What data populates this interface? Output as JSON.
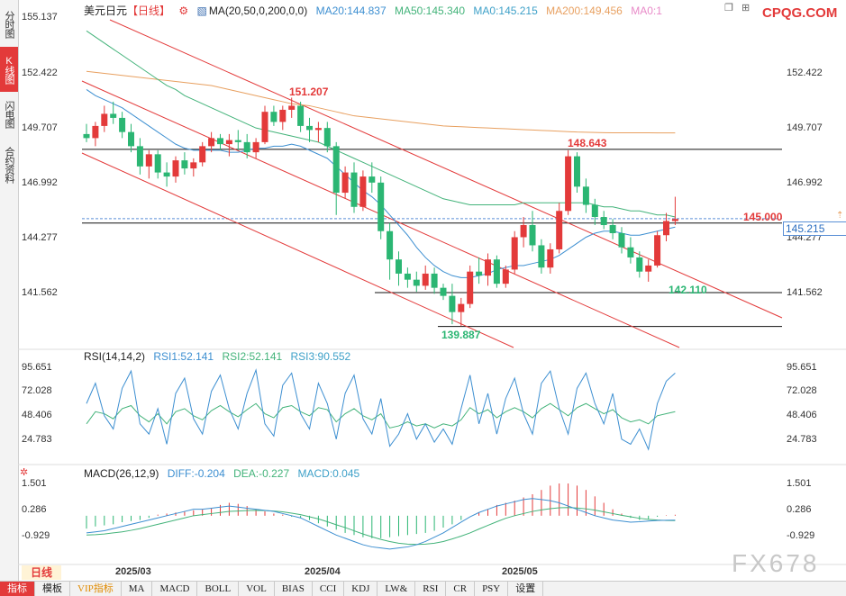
{
  "sidebar": {
    "tabs": [
      {
        "label": "分时图",
        "active": false
      },
      {
        "label": "K线图",
        "active": true
      },
      {
        "label": "闪电图",
        "active": false
      },
      {
        "label": "合约资料",
        "active": false
      }
    ]
  },
  "header": {
    "symbol": "美元日元",
    "period": "【日线】",
    "ma_params": "MA(20,50,0,200,0,0)",
    "ma20": "MA20:144.837",
    "ma50": "MA50:145.340",
    "ma0": "MA0:145.215",
    "ma200": "MA200:149.456",
    "ma0b": "MA0:1",
    "brand": "CPQG.COM"
  },
  "price_axis": [
    "155.137",
    "152.422",
    "149.707",
    "146.992",
    "144.277",
    "141.562"
  ],
  "current_price": "145.215",
  "annotations": {
    "high1": "151.207",
    "high2": "148.643",
    "low1": "139.887",
    "low2": "142.110",
    "level": "145.000"
  },
  "rsi": {
    "title": "RSI(14,14,2)",
    "rsi1": "RSI1:52.141",
    "rsi2": "RSI2:52.141",
    "rsi3": "RSI3:90.552",
    "axis": [
      "95.651",
      "72.028",
      "48.406",
      "24.783"
    ]
  },
  "macd": {
    "title": "MACD(26,12,9)",
    "diff": "DIFF:-0.204",
    "dea": "DEA:-0.227",
    "macd": "MACD:0.045",
    "axis": [
      "1.501",
      "0.286",
      "-0.929"
    ]
  },
  "dates": [
    "2025/03",
    "2025/04",
    "2025/05"
  ],
  "period_badge": "日线",
  "watermark": "FX678",
  "toolbar": [
    "指标",
    "模板",
    "VIP指标",
    "MA",
    "MACD",
    "BOLL",
    "VOL",
    "BIAS",
    "CCI",
    "KDJ",
    "LW&",
    "RSI",
    "CR",
    "PSY",
    "设置"
  ],
  "colors": {
    "up": "#e33a3a",
    "down": "#2bb673",
    "ma20": "#3d8fd1",
    "ma50": "#43b37a",
    "ma200": "#e8a060"
  },
  "chart_data": {
    "type": "candlestick",
    "ylim": [
      138.5,
      156.0
    ],
    "candles": [
      [
        149.4,
        149.9,
        149.0,
        149.2
      ],
      [
        149.2,
        150.0,
        148.8,
        149.8
      ],
      [
        149.8,
        150.8,
        149.5,
        150.4
      ],
      [
        150.4,
        151.0,
        149.9,
        150.2
      ],
      [
        150.2,
        150.5,
        149.2,
        149.5
      ],
      [
        149.5,
        149.9,
        148.5,
        148.8
      ],
      [
        148.8,
        149.2,
        147.4,
        147.8
      ],
      [
        147.8,
        148.6,
        147.2,
        148.4
      ],
      [
        148.4,
        148.6,
        147.2,
        147.5
      ],
      [
        147.5,
        148.0,
        146.8,
        147.3
      ],
      [
        147.3,
        148.3,
        147.0,
        148.1
      ],
      [
        148.1,
        148.5,
        147.4,
        147.7
      ],
      [
        147.7,
        148.2,
        147.3,
        148.0
      ],
      [
        148.0,
        149.0,
        147.8,
        148.8
      ],
      [
        148.8,
        149.5,
        148.5,
        149.2
      ],
      [
        149.2,
        149.4,
        148.6,
        148.9
      ],
      [
        148.9,
        149.4,
        148.3,
        149.1
      ],
      [
        149.1,
        149.6,
        148.6,
        149.0
      ],
      [
        149.0,
        149.4,
        148.2,
        148.5
      ],
      [
        148.5,
        149.2,
        148.2,
        149.0
      ],
      [
        149.0,
        150.8,
        148.9,
        150.5
      ],
      [
        150.5,
        150.8,
        149.8,
        150.0
      ],
      [
        150.0,
        150.8,
        149.6,
        150.6
      ],
      [
        150.6,
        151.2,
        150.2,
        150.8
      ],
      [
        150.8,
        151.0,
        149.5,
        149.8
      ],
      [
        149.8,
        150.2,
        149.0,
        149.6
      ],
      [
        149.6,
        150.0,
        149.0,
        149.7
      ],
      [
        149.7,
        150.0,
        148.5,
        148.8
      ],
      [
        148.8,
        149.0,
        145.4,
        146.5
      ],
      [
        146.5,
        147.8,
        146.2,
        147.5
      ],
      [
        147.5,
        148.0,
        145.5,
        145.8
      ],
      [
        145.8,
        147.6,
        145.6,
        147.3
      ],
      [
        147.3,
        148.0,
        146.5,
        147.0
      ],
      [
        147.0,
        147.3,
        144.2,
        144.6
      ],
      [
        144.6,
        145.0,
        142.2,
        143.2
      ],
      [
        143.2,
        143.6,
        141.9,
        142.5
      ],
      [
        142.5,
        142.8,
        141.8,
        142.2
      ],
      [
        142.2,
        142.6,
        141.6,
        141.9
      ],
      [
        141.9,
        142.9,
        141.7,
        142.5
      ],
      [
        142.5,
        142.8,
        141.5,
        141.8
      ],
      [
        141.8,
        142.0,
        141.2,
        141.4
      ],
      [
        141.4,
        142.0,
        140.0,
        140.6
      ],
      [
        140.6,
        141.3,
        139.9,
        141.0
      ],
      [
        141.0,
        142.9,
        140.8,
        142.6
      ],
      [
        142.6,
        143.3,
        142.0,
        142.4
      ],
      [
        142.4,
        143.5,
        141.9,
        143.2
      ],
      [
        143.2,
        143.4,
        141.8,
        142.0
      ],
      [
        142.0,
        142.9,
        141.8,
        142.7
      ],
      [
        142.7,
        144.6,
        142.5,
        144.3
      ],
      [
        144.3,
        145.3,
        143.8,
        144.9
      ],
      [
        144.9,
        145.6,
        143.6,
        143.9
      ],
      [
        143.9,
        144.2,
        142.5,
        142.8
      ],
      [
        142.8,
        144.0,
        142.5,
        143.7
      ],
      [
        143.7,
        146.0,
        143.5,
        145.6
      ],
      [
        145.6,
        148.6,
        145.4,
        148.3
      ],
      [
        148.3,
        148.5,
        146.5,
        146.8
      ],
      [
        146.8,
        147.2,
        145.5,
        145.9
      ],
      [
        145.9,
        146.2,
        144.9,
        145.3
      ],
      [
        145.3,
        145.6,
        144.7,
        144.9
      ],
      [
        144.9,
        145.2,
        144.2,
        144.5
      ],
      [
        144.5,
        144.8,
        143.5,
        143.8
      ],
      [
        143.8,
        144.3,
        143.0,
        143.3
      ],
      [
        143.3,
        143.6,
        142.3,
        142.6
      ],
      [
        142.6,
        143.2,
        142.1,
        142.9
      ],
      [
        142.9,
        144.6,
        142.8,
        144.4
      ],
      [
        144.4,
        145.5,
        144.1,
        145.1
      ],
      [
        145.1,
        146.3,
        144.9,
        145.2
      ]
    ],
    "ma20": [
      151.6,
      151.3,
      151.1,
      150.9,
      150.7,
      150.4,
      150.1,
      149.8,
      149.5,
      149.2,
      148.9,
      148.7,
      148.6,
      148.6,
      148.6,
      148.6,
      148.5,
      148.5,
      148.6,
      148.7,
      148.7,
      148.8,
      148.8,
      148.9,
      148.8,
      148.6,
      148.4,
      148.2,
      147.8,
      147.4,
      147.0,
      146.6,
      146.3,
      145.9,
      145.4,
      144.9,
      144.4,
      143.8,
      143.3,
      142.9,
      142.6,
      142.4,
      142.3,
      142.3,
      142.4,
      142.5,
      142.7,
      142.8,
      142.9,
      142.9,
      143.0,
      143.1,
      143.2,
      143.4,
      143.7,
      144.0,
      144.3,
      144.5,
      144.6,
      144.6,
      144.5,
      144.4,
      144.4,
      144.5,
      144.6,
      144.7,
      144.8
    ],
    "ma50": [
      154.5,
      154.2,
      153.9,
      153.6,
      153.3,
      153.0,
      152.7,
      152.4,
      152.1,
      151.8,
      151.6,
      151.3,
      151.1,
      150.9,
      150.7,
      150.5,
      150.3,
      150.1,
      149.9,
      149.7,
      149.6,
      149.5,
      149.4,
      149.3,
      149.2,
      149.1,
      149.0,
      148.8,
      148.6,
      148.4,
      148.2,
      148.0,
      147.8,
      147.6,
      147.4,
      147.2,
      147.0,
      146.8,
      146.6,
      146.4,
      146.2,
      146.1,
      146.0,
      145.9,
      145.9,
      145.9,
      145.9,
      145.9,
      145.9,
      146.0,
      146.0,
      146.0,
      146.0,
      146.0,
      146.0,
      146.0,
      146.0,
      145.9,
      145.8,
      145.8,
      145.7,
      145.6,
      145.6,
      145.5,
      145.4,
      145.4,
      145.3
    ],
    "ma200": [
      152.5,
      152.45,
      152.4,
      152.35,
      152.3,
      152.25,
      152.2,
      152.15,
      152.1,
      152.05,
      152.0,
      151.95,
      151.9,
      151.85,
      151.8,
      151.7,
      151.6,
      151.5,
      151.4,
      151.3,
      151.2,
      151.1,
      151.0,
      150.9,
      150.85,
      150.8,
      150.7,
      150.6,
      150.5,
      150.4,
      150.3,
      150.25,
      150.2,
      150.15,
      150.1,
      150.05,
      150.0,
      149.95,
      149.9,
      149.85,
      149.8,
      149.78,
      149.76,
      149.74,
      149.72,
      149.7,
      149.68,
      149.66,
      149.64,
      149.62,
      149.6,
      149.58,
      149.56,
      149.54,
      149.52,
      149.5,
      149.49,
      149.48,
      149.47,
      149.46,
      149.46,
      149.46,
      149.46,
      149.46,
      149.456,
      149.456,
      149.456
    ],
    "rsi_line1": [
      60,
      80,
      48,
      35,
      75,
      92,
      40,
      30,
      55,
      20,
      70,
      85,
      45,
      30,
      72,
      88,
      55,
      35,
      70,
      93,
      40,
      28,
      78,
      90,
      50,
      35,
      80,
      60,
      25,
      70,
      88,
      45,
      30,
      65,
      18,
      30,
      50,
      25,
      40,
      22,
      35,
      20,
      55,
      88,
      40,
      70,
      30,
      65,
      85,
      50,
      30,
      80,
      92,
      55,
      30,
      75,
      90,
      60,
      40,
      70,
      25,
      20,
      35,
      15,
      60,
      82,
      90
    ],
    "rsi_line2": [
      40,
      52,
      50,
      45,
      55,
      58,
      48,
      42,
      50,
      40,
      52,
      55,
      48,
      44,
      53,
      58,
      52,
      47,
      54,
      60,
      50,
      46,
      56,
      58,
      52,
      48,
      56,
      54,
      42,
      50,
      55,
      48,
      44,
      50,
      36,
      38,
      42,
      38,
      40,
      36,
      40,
      38,
      44,
      56,
      50,
      54,
      46,
      52,
      56,
      52,
      46,
      55,
      60,
      54,
      48,
      56,
      60,
      55,
      50,
      54,
      46,
      42,
      44,
      40,
      48,
      50,
      52
    ],
    "macd_hist": [
      -0.6,
      -0.5,
      -0.45,
      -0.4,
      -0.3,
      -0.25,
      -0.2,
      -0.1,
      0.05,
      0.1,
      0.15,
      0.2,
      0.25,
      0.3,
      0.35,
      0.5,
      0.6,
      0.55,
      0.45,
      0.3,
      0.2,
      0.1,
      0.05,
      -0.05,
      -0.1,
      -0.2,
      -0.35,
      -0.5,
      -0.65,
      -0.8,
      -0.9,
      -1.0,
      -1.05,
      -1.05,
      -1.0,
      -0.95,
      -0.9,
      -0.85,
      -0.8,
      -0.7,
      -0.55,
      -0.4,
      -0.2,
      0.0,
      0.15,
      0.3,
      0.5,
      0.6,
      0.7,
      0.85,
      1.0,
      1.2,
      1.4,
      1.5,
      1.5,
      1.4,
      1.2,
      0.9,
      0.6,
      0.3,
      0.1,
      -0.1,
      -0.2,
      -0.15,
      -0.05,
      0.02,
      0.045
    ],
    "macd_diff": [
      -0.8,
      -0.75,
      -0.7,
      -0.6,
      -0.5,
      -0.4,
      -0.3,
      -0.2,
      -0.1,
      0.0,
      0.1,
      0.2,
      0.3,
      0.3,
      0.35,
      0.4,
      0.45,
      0.4,
      0.35,
      0.3,
      0.25,
      0.2,
      0.1,
      0.0,
      -0.1,
      -0.3,
      -0.5,
      -0.7,
      -0.9,
      -1.05,
      -1.2,
      -1.35,
      -1.45,
      -1.5,
      -1.55,
      -1.5,
      -1.45,
      -1.35,
      -1.2,
      -1.0,
      -0.8,
      -0.55,
      -0.3,
      -0.05,
      0.15,
      0.3,
      0.45,
      0.55,
      0.65,
      0.75,
      0.8,
      0.75,
      0.7,
      0.6,
      0.45,
      0.3,
      0.15,
      0.0,
      -0.1,
      -0.2,
      -0.25,
      -0.3,
      -0.28,
      -0.25,
      -0.22,
      -0.21,
      -0.204
    ],
    "macd_dea": [
      -0.9,
      -0.88,
      -0.85,
      -0.8,
      -0.75,
      -0.68,
      -0.6,
      -0.5,
      -0.4,
      -0.3,
      -0.2,
      -0.1,
      0.0,
      0.05,
      0.1,
      0.15,
      0.2,
      0.22,
      0.24,
      0.25,
      0.24,
      0.22,
      0.18,
      0.12,
      0.05,
      -0.05,
      -0.15,
      -0.28,
      -0.42,
      -0.55,
      -0.7,
      -0.85,
      -0.98,
      -1.1,
      -1.2,
      -1.28,
      -1.32,
      -1.34,
      -1.32,
      -1.28,
      -1.2,
      -1.08,
      -0.95,
      -0.8,
      -0.62,
      -0.45,
      -0.28,
      -0.12,
      0.0,
      0.1,
      0.2,
      0.27,
      0.33,
      0.37,
      0.38,
      0.36,
      0.32,
      0.26,
      0.18,
      0.1,
      0.02,
      -0.05,
      -0.12,
      -0.17,
      -0.2,
      -0.22,
      -0.227
    ]
  }
}
